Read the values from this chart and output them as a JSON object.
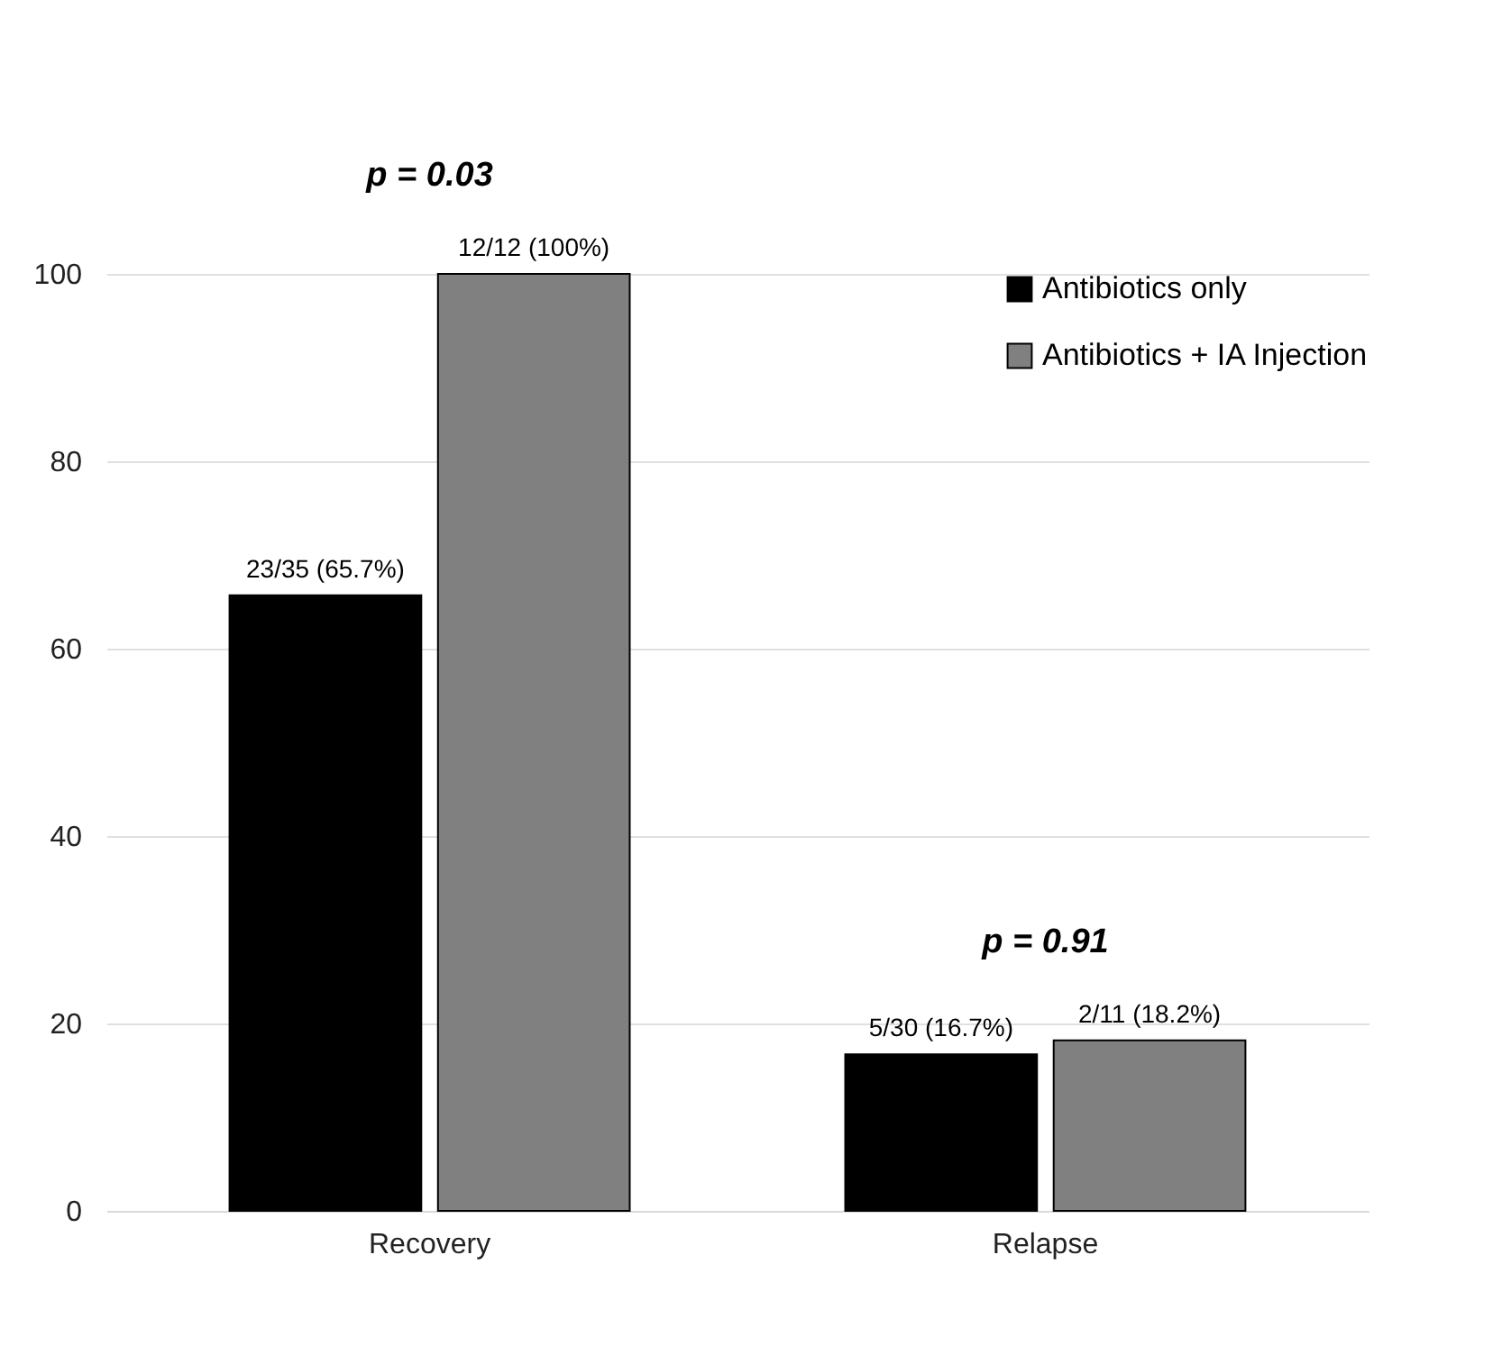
{
  "chart_data": {
    "type": "bar",
    "categories": [
      "Recovery",
      "Relapse"
    ],
    "series": [
      {
        "name": "Antibiotics only",
        "color": "#000000",
        "values": [
          65.7,
          16.7
        ],
        "value_labels": [
          "23/35 (65.7%)",
          "5/30 (16.7%)"
        ]
      },
      {
        "name": "Antibiotics + IA Injection",
        "color": "#808080",
        "values": [
          100,
          18.2
        ],
        "value_labels": [
          "12/12 (100%)",
          "2/11 (18.2%)"
        ]
      }
    ],
    "ylim": [
      0,
      100
    ],
    "yticks": [
      0,
      20,
      40,
      60,
      80,
      100
    ],
    "grid": "y",
    "legend": "top right",
    "annotations": [
      "p = 0.03",
      "p = 0.91"
    ]
  }
}
